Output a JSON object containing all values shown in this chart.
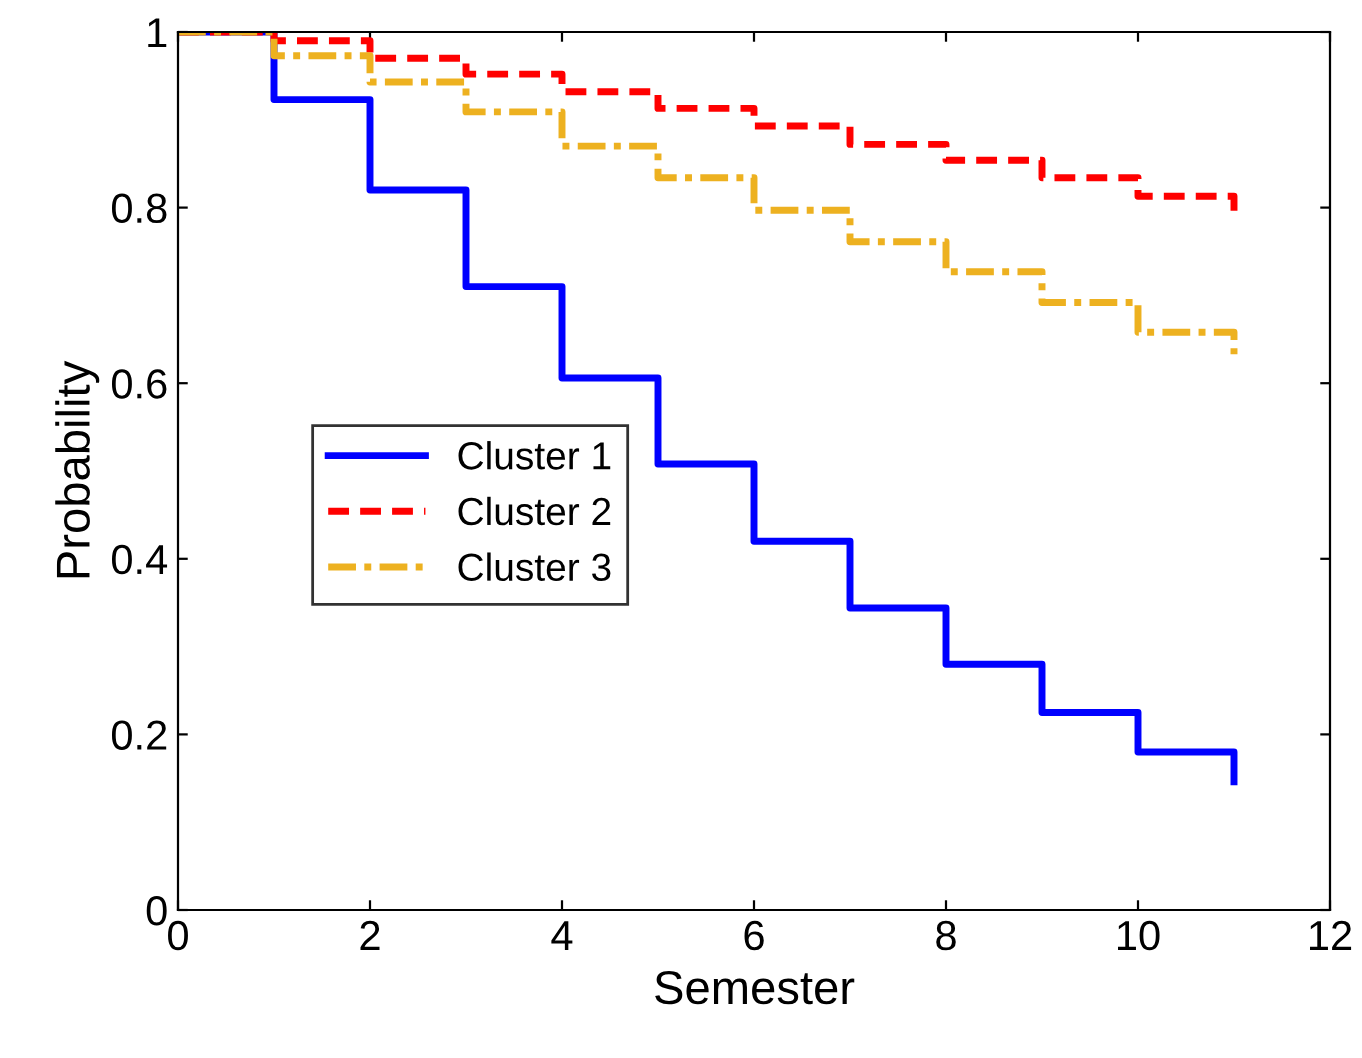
{
  "chart_data": {
    "type": "step",
    "xlabel": "Semester",
    "ylabel": "Probability",
    "xlim": [
      0,
      12
    ],
    "ylim": [
      0,
      1
    ],
    "xticks": [
      0,
      2,
      4,
      6,
      8,
      10,
      12
    ],
    "yticks": [
      0,
      0.2,
      0.4,
      0.6,
      0.8,
      1
    ],
    "grid": false,
    "legend": "left",
    "series": [
      {
        "name": "Cluster 1",
        "color": "#0000ff",
        "line_style": "solid",
        "x": [
          0,
          1,
          2,
          3,
          4,
          5,
          6,
          7,
          8,
          9,
          10,
          11,
          11
        ],
        "values": [
          1,
          0.923,
          0.82,
          0.71,
          0.606,
          0.508,
          0.42,
          0.344,
          0.28,
          0.225,
          0.18,
          0.18,
          0.146
        ]
      },
      {
        "name": "Cluster 2",
        "color": "#ff0000",
        "line_style": "dashed",
        "x": [
          0,
          1,
          2,
          3,
          4,
          5,
          6,
          7,
          8,
          9,
          10,
          11,
          11
        ],
        "values": [
          1,
          0.99,
          0.97,
          0.952,
          0.932,
          0.913,
          0.893,
          0.872,
          0.854,
          0.834,
          0.813,
          0.813,
          0.795
        ]
      },
      {
        "name": "Cluster 3",
        "color": "#edb120",
        "line_style": "dashdot",
        "x": [
          0,
          1,
          2,
          3,
          4,
          5,
          6,
          7,
          8,
          9,
          10,
          11,
          11
        ],
        "values": [
          1,
          0.973,
          0.943,
          0.909,
          0.87,
          0.834,
          0.797,
          0.761,
          0.727,
          0.692,
          0.658,
          0.658,
          0.633
        ]
      }
    ]
  }
}
